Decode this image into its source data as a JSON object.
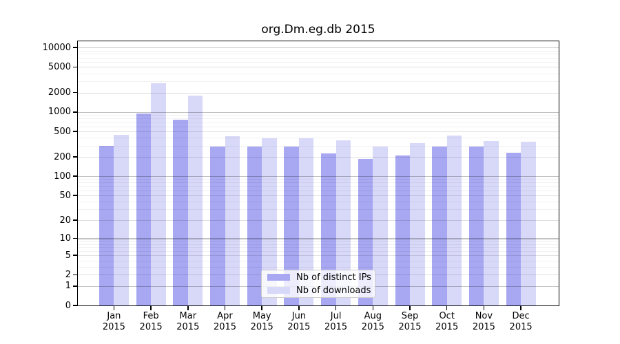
{
  "chart_data": {
    "type": "bar",
    "title": "org.Dm.eg.db 2015",
    "categories": [
      "Jan",
      "Feb",
      "Mar",
      "Apr",
      "May",
      "Jun",
      "Jul",
      "Aug",
      "Sep",
      "Oct",
      "Nov",
      "Dec"
    ],
    "x_tick_year": "2015",
    "series": [
      {
        "name": "Nb of distinct IPs",
        "color": "#a7a7f2",
        "values": [
          295,
          950,
          760,
          290,
          290,
          290,
          230,
          185,
          212,
          290,
          293,
          235
        ]
      },
      {
        "name": "Nb of downloads",
        "color": "#d8d8f8",
        "values": [
          445,
          2780,
          1800,
          425,
          390,
          395,
          360,
          290,
          330,
          435,
          358,
          345
        ]
      }
    ],
    "y_scale": "log1p",
    "y_ticks": [
      0,
      1,
      2,
      5,
      10,
      20,
      50,
      100,
      200,
      500,
      1000,
      2000,
      5000,
      10000
    ],
    "ylim": [
      0,
      12500
    ],
    "xlabel": "",
    "ylabel": "",
    "grid": true,
    "legend_position": "lower center"
  }
}
